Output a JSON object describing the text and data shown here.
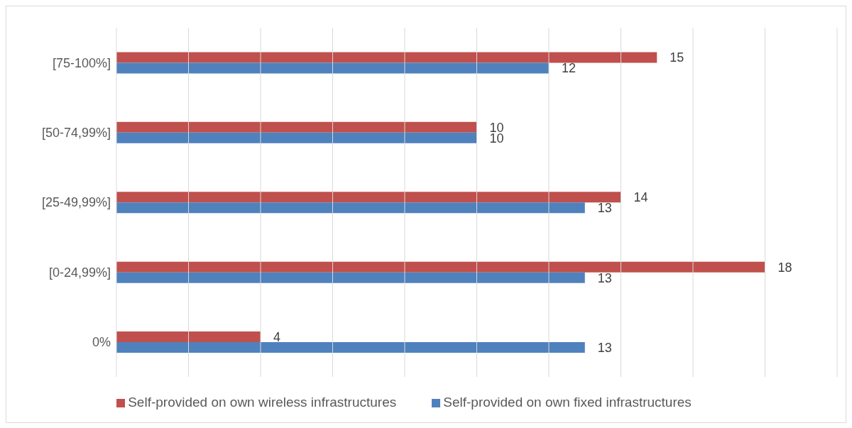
{
  "chart_data": {
    "type": "bar",
    "orientation": "horizontal",
    "categories": [
      "[75-100%]",
      "[50-74,99%]",
      "[25-49,99%]",
      "[0-24,99%]",
      "0%"
    ],
    "series": [
      {
        "name": "Self-provided on own wireless infrastructures",
        "color": "#c0504d",
        "values": [
          15,
          10,
          14,
          18,
          4
        ]
      },
      {
        "name": "Self-provided on own fixed infrastructures",
        "color": "#4f81bd",
        "values": [
          12,
          10,
          13,
          13,
          13
        ]
      }
    ],
    "xlim": [
      0,
      20
    ],
    "xticks": [
      {
        "value": 0,
        "label": null
      },
      {
        "value": 2,
        "label": null
      },
      {
        "value": 4,
        "label": null
      },
      {
        "value": 6,
        "label": null
      },
      {
        "value": 8,
        "label": null
      },
      {
        "value": 10,
        "label": null
      },
      {
        "value": 12,
        "label": null
      },
      {
        "value": 14,
        "label": null
      },
      {
        "value": 16,
        "label": null
      },
      {
        "value": 18,
        "label": null
      },
      {
        "value": 20,
        "label": null
      }
    ],
    "tick_labels": "y",
    "grid": "x",
    "legend": "bottom",
    "data_labels": true
  }
}
